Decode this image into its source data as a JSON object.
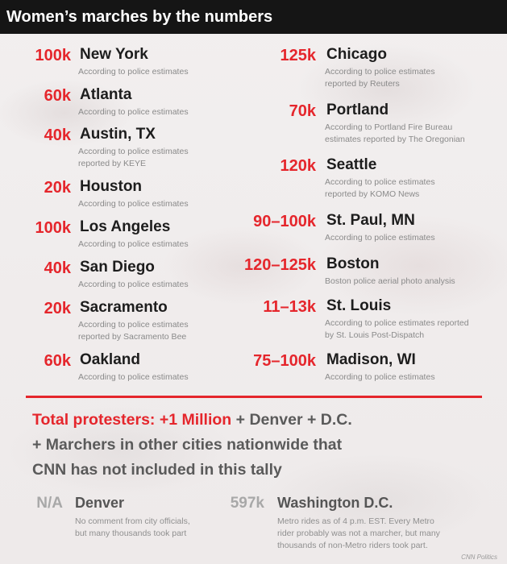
{
  "title": "Women’s marches by the numbers",
  "left_column": [
    {
      "num": "100k",
      "city": "New York",
      "note": [
        "According to police estimates"
      ]
    },
    {
      "num": "60k",
      "city": "Atlanta",
      "note": [
        "According to police estimates"
      ]
    },
    {
      "num": "40k",
      "city": "Austin, TX",
      "note": [
        "According to police estimates",
        "reported by KEYE"
      ]
    },
    {
      "num": "20k",
      "city": "Houston",
      "note": [
        "According to police estimates"
      ]
    },
    {
      "num": "100k",
      "city": "Los Angeles",
      "note": [
        "According to police estimates"
      ]
    },
    {
      "num": "40k",
      "city": "San Diego",
      "note": [
        "According to police estimates"
      ]
    },
    {
      "num": "20k",
      "city": "Sacramento",
      "note": [
        "According to police estimates",
        "reported by Sacramento Bee"
      ]
    },
    {
      "num": "60k",
      "city": "Oakland",
      "note": [
        "According to police estimates"
      ]
    }
  ],
  "right_column": [
    {
      "num": "125k",
      "city": "Chicago",
      "note": [
        "According to police estimates",
        "reported by Reuters"
      ]
    },
    {
      "num": "70k",
      "city": "Portland",
      "note": [
        "According to Portland Fire Bureau",
        "estimates reported by The Oregonian"
      ]
    },
    {
      "num": "120k",
      "city": "Seattle",
      "note": [
        "According to police estimates",
        "reported by KOMO News"
      ]
    },
    {
      "num": "90–100k",
      "city": "St. Paul, MN",
      "note": [
        "According to police estimates"
      ]
    },
    {
      "num": "120–125k",
      "city": "Boston",
      "note": [
        "Boston police aerial photo analysis"
      ]
    },
    {
      "num": "11–13k",
      "city": "St. Louis",
      "note": [
        "According to police estimates reported",
        "by St. Louis Post-Dispatch"
      ]
    },
    {
      "num": "75–100k",
      "city": "Madison, WI",
      "note": [
        "According to police estimates"
      ]
    }
  ],
  "total": {
    "red_part": "Total protesters: +1 Million",
    "rest_line1": " + Denver + D.C.",
    "line2": "+ Marchers in other cities nationwide that",
    "line3": "CNN has not included in this tally"
  },
  "extras": [
    {
      "num": "N/A",
      "city": "Denver",
      "note": [
        "No comment from city officials,",
        "but many thousands took part"
      ]
    },
    {
      "num": "597k",
      "city": "Washington D.C.",
      "note": [
        "Metro rides as of 4 p.m. EST. Every Metro",
        "rider probably was not a marcher, but many",
        "thousands of non-Metro riders took part."
      ]
    }
  ],
  "credit": "CNN Politics"
}
